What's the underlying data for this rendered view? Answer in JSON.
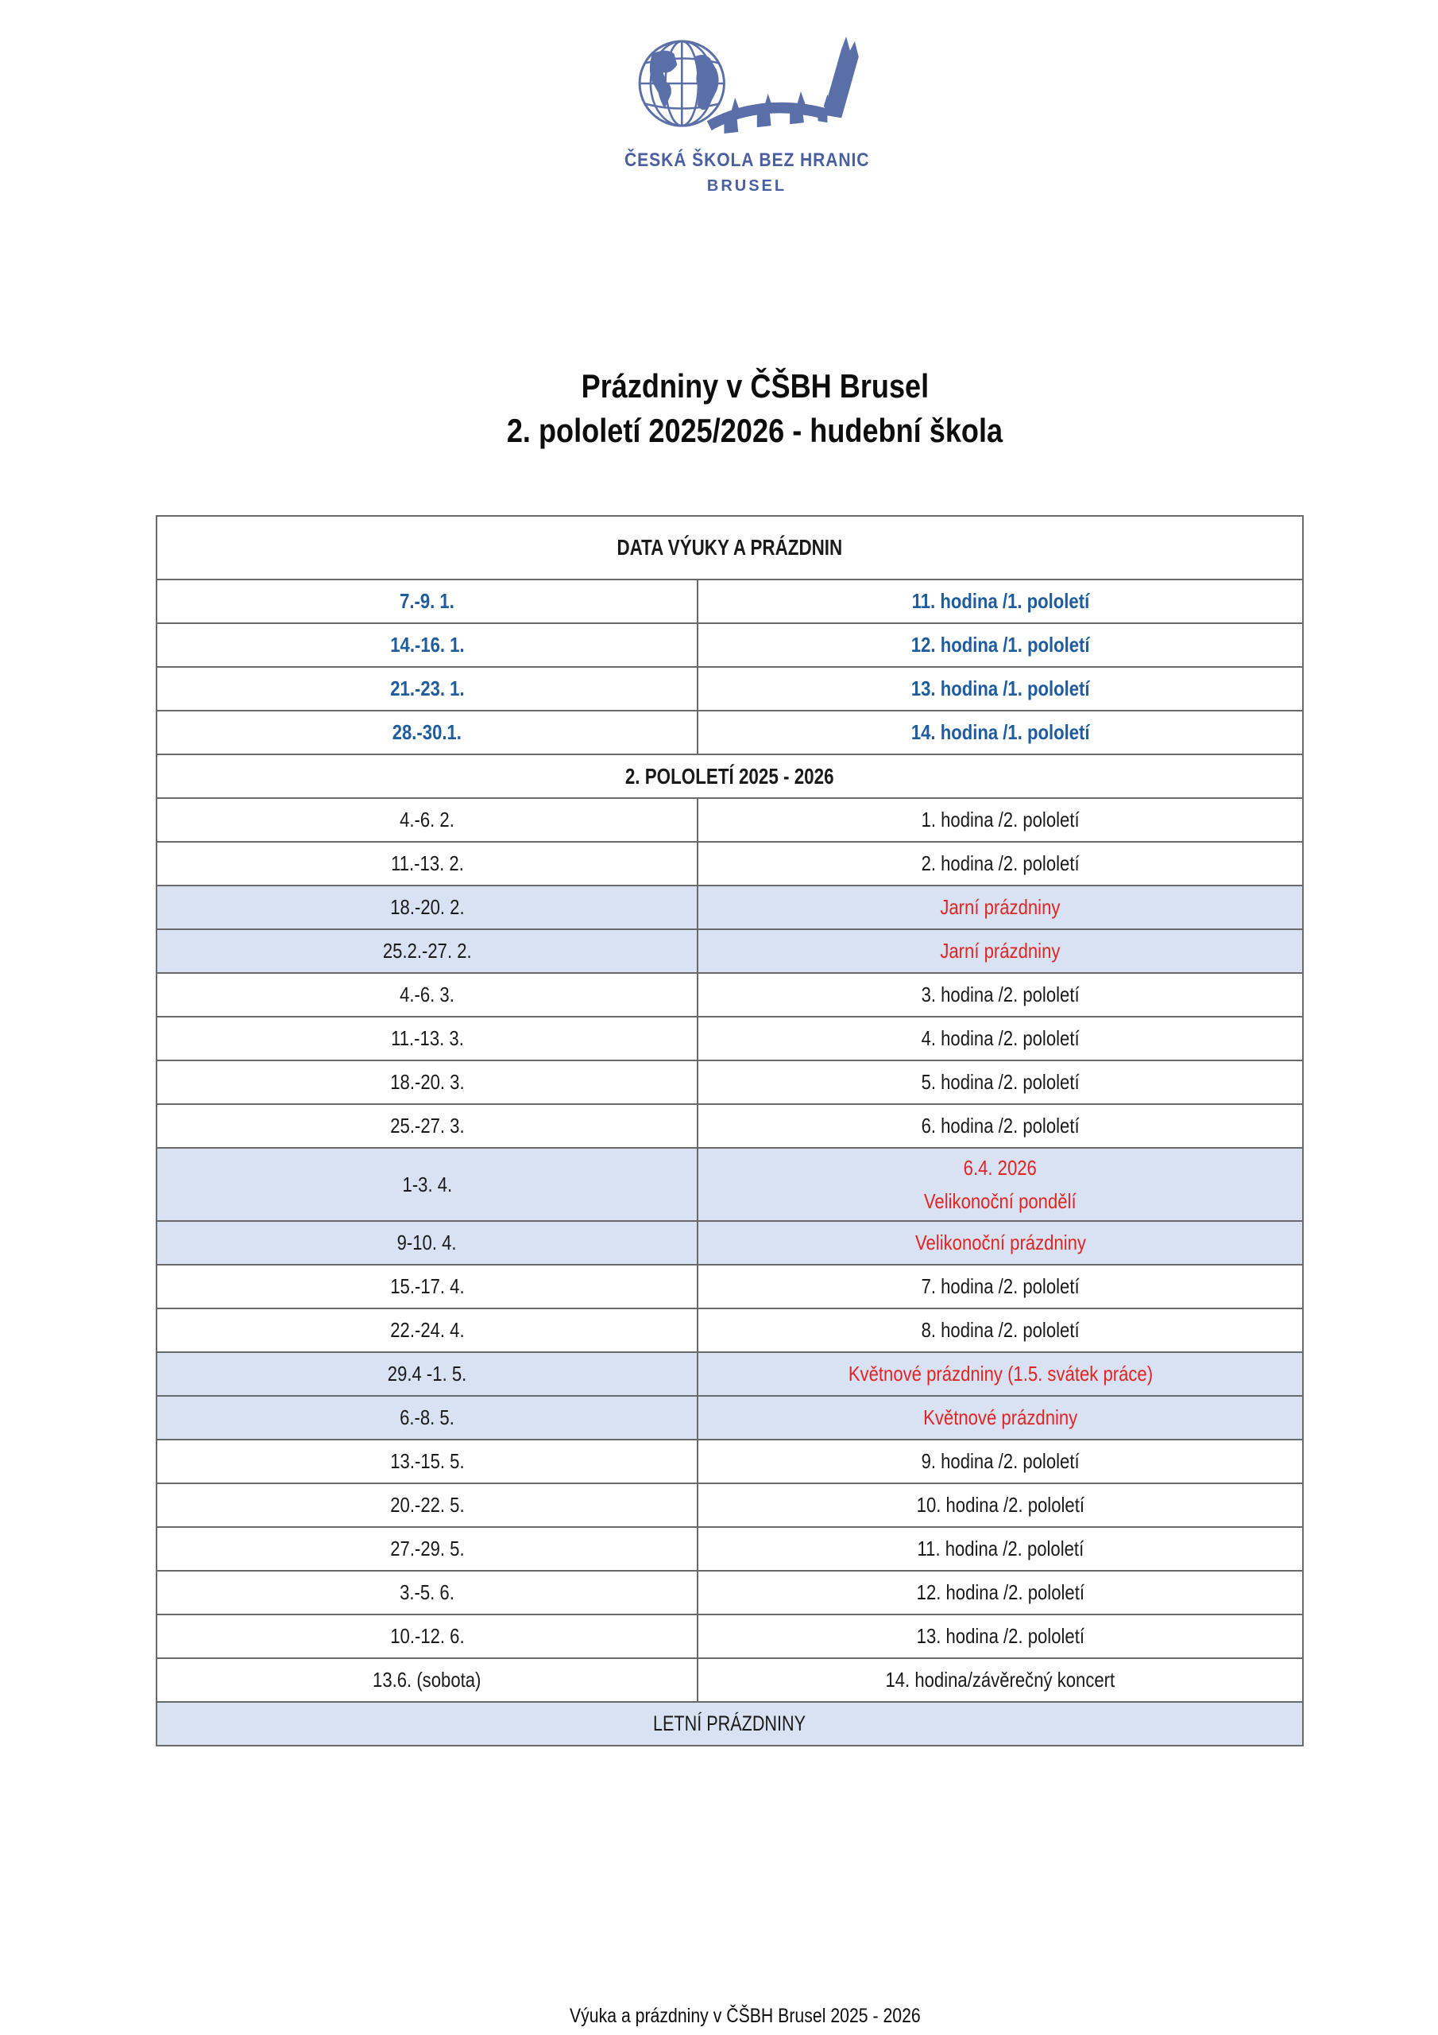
{
  "logo": {
    "org_name": "ČESKÁ ŠKOLA BEZ HRANIC",
    "org_city": "BRUSEL"
  },
  "title": {
    "line1": "Prázdniny v ČŠBH Brusel",
    "line2": "2. pololetí 2025/2026 - hudební škola"
  },
  "table": {
    "rows": [
      {
        "type": "section",
        "label": "DATA VÝUKY A PRÁZDNIN",
        "variant": "top"
      },
      {
        "type": "entry",
        "date": "7.-9. 1.",
        "lesson": "11. hodina /1. pololetí",
        "variant": "sem1"
      },
      {
        "type": "entry",
        "date": "14.-16. 1.",
        "lesson": "12. hodina /1. pololetí",
        "variant": "sem1"
      },
      {
        "type": "entry",
        "date": "21.-23. 1.",
        "lesson": "13. hodina /1. pololetí",
        "variant": "sem1"
      },
      {
        "type": "entry",
        "date": "28.-30.1.",
        "lesson": "14. hodina /1. pololetí",
        "variant": "sem1"
      },
      {
        "type": "section",
        "label": "2. POLOLETÍ 2025 - 2026",
        "variant": "mid"
      },
      {
        "type": "entry",
        "date": "4.-6. 2.",
        "lesson": "1. hodina /2. pololetí",
        "variant": "lesson"
      },
      {
        "type": "entry",
        "date": "11.-13. 2.",
        "lesson": "2. hodina /2. pololetí",
        "variant": "lesson"
      },
      {
        "type": "entry",
        "date": "18.-20. 2.",
        "lesson": "Jarní prázdniny",
        "variant": "holiday"
      },
      {
        "type": "entry",
        "date": "25.2.-27. 2.",
        "lesson": "Jarní prázdniny",
        "variant": "holiday"
      },
      {
        "type": "entry",
        "date": "4.-6. 3.",
        "lesson": "3. hodina /2. pololetí",
        "variant": "lesson"
      },
      {
        "type": "entry",
        "date": "11.-13. 3.",
        "lesson": "4. hodina /2. pololetí",
        "variant": "lesson"
      },
      {
        "type": "entry",
        "date": "18.-20. 3.",
        "lesson": "5. hodina /2. pololetí",
        "variant": "lesson"
      },
      {
        "type": "entry",
        "date": "25.-27. 3.",
        "lesson": "6. hodina /2. pololetí",
        "variant": "lesson"
      },
      {
        "type": "entry",
        "date": "1-3. 4.",
        "lesson_lines": [
          "6.4. 2026",
          "Velikonoční pondělí"
        ],
        "variant": "holiday",
        "tall": true
      },
      {
        "type": "entry",
        "date": "9-10. 4.",
        "lesson": "Velikonoční prázdniny",
        "variant": "holiday"
      },
      {
        "type": "entry",
        "date": "15.-17. 4.",
        "lesson": "7. hodina /2. pololetí",
        "variant": "lesson"
      },
      {
        "type": "entry",
        "date": "22.-24. 4.",
        "lesson": "8. hodina /2. pololetí",
        "variant": "lesson"
      },
      {
        "type": "entry",
        "date": "29.4 -1. 5.",
        "lesson": "Květnové prázdniny (1.5. svátek práce)",
        "variant": "holiday"
      },
      {
        "type": "entry",
        "date": "6.-8. 5.",
        "lesson": "Květnové prázdniny",
        "variant": "holiday"
      },
      {
        "type": "entry",
        "date": "13.-15. 5.",
        "lesson": "9. hodina /2. pololetí",
        "variant": "lesson"
      },
      {
        "type": "entry",
        "date": "20.-22. 5.",
        "lesson": "10. hodina /2. pololetí",
        "variant": "lesson"
      },
      {
        "type": "entry",
        "date": "27.-29. 5.",
        "lesson": "11. hodina /2. pololetí",
        "variant": "lesson"
      },
      {
        "type": "entry",
        "date": "3.-5. 6.",
        "lesson": "12. hodina /2. pololetí",
        "variant": "lesson"
      },
      {
        "type": "entry",
        "date": "10.-12. 6.",
        "lesson": "13. hodina /2. pololetí",
        "variant": "lesson"
      },
      {
        "type": "entry",
        "date": "13.6. (sobota)",
        "lesson": "14. hodina/závěrečný koncert",
        "variant": "lesson"
      },
      {
        "type": "section",
        "label": "LETNÍ PRÁZDNINY",
        "variant": "summer"
      }
    ]
  },
  "footer": {
    "text": "Výuka a prázdniny v ČŠBH Brusel 2025 - 2026"
  },
  "colors": {
    "accent_blue_text": "#1f5c9e",
    "holiday_red": "#e02424",
    "holiday_row_bg": "#d9e2f3",
    "logo_blue": "#4a5fa0",
    "table_border": "#6a6a6a",
    "text_black": "#1a1a1a"
  }
}
